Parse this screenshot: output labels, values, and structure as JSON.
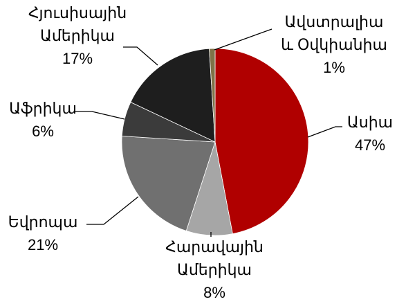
{
  "chart_data": {
    "type": "pie",
    "categories": [
      "Ասիա",
      "Հարավային\nԱմերիկա",
      "Եվրոպա",
      "Աֆրիկա",
      "Հյուսիսային\nԱմերիկա",
      "Ավստրալիա\nև Օվկիանիա"
    ],
    "values": [
      47,
      8,
      21,
      6,
      17,
      1
    ],
    "value_labels": [
      "47%",
      "8%",
      "21%",
      "6%",
      "17%",
      "1%"
    ],
    "colors": [
      "#b00000",
      "#a6a6a6",
      "#707070",
      "#3b3b3b",
      "#1e1e1e",
      "#7f7248"
    ]
  }
}
